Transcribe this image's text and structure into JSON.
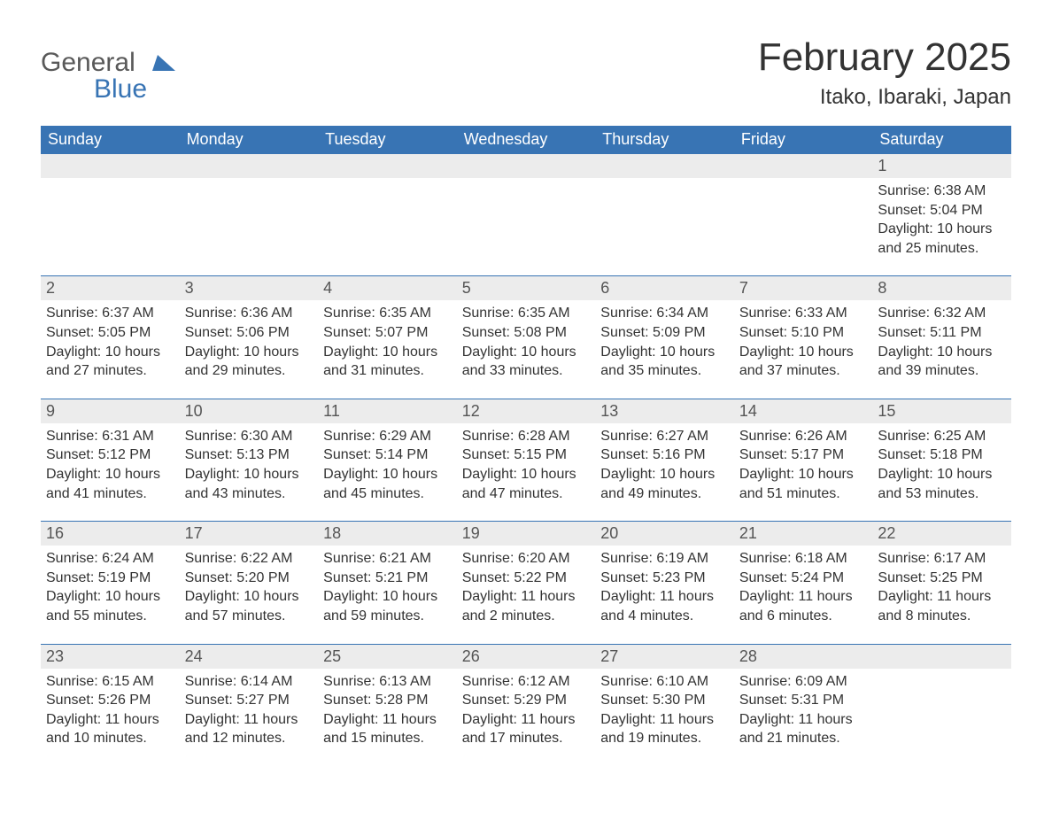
{
  "logo": {
    "word1": "General",
    "word2": "Blue",
    "word1_color": "#595959",
    "word2_color": "#3874b4",
    "flag_color": "#3874b4"
  },
  "title": "February 2025",
  "location": "Itako, Ibaraki, Japan",
  "colors": {
    "header_bg": "#3874b4",
    "header_text": "#ffffff",
    "daynum_bg": "#ececec",
    "daynum_text": "#555555",
    "body_text": "#333333",
    "separator": "#3874b4",
    "page_bg": "#ffffff"
  },
  "typography": {
    "title_fontsize": 44,
    "location_fontsize": 24,
    "weekday_fontsize": 18,
    "daynum_fontsize": 18,
    "body_fontsize": 16
  },
  "calendar": {
    "type": "table",
    "columns": [
      "Sunday",
      "Monday",
      "Tuesday",
      "Wednesday",
      "Thursday",
      "Friday",
      "Saturday"
    ],
    "weeks": [
      [
        null,
        null,
        null,
        null,
        null,
        null,
        {
          "day": "1",
          "sunrise": "Sunrise: 6:38 AM",
          "sunset": "Sunset: 5:04 PM",
          "daylight": "Daylight: 10 hours and 25 minutes."
        }
      ],
      [
        {
          "day": "2",
          "sunrise": "Sunrise: 6:37 AM",
          "sunset": "Sunset: 5:05 PM",
          "daylight": "Daylight: 10 hours and 27 minutes."
        },
        {
          "day": "3",
          "sunrise": "Sunrise: 6:36 AM",
          "sunset": "Sunset: 5:06 PM",
          "daylight": "Daylight: 10 hours and 29 minutes."
        },
        {
          "day": "4",
          "sunrise": "Sunrise: 6:35 AM",
          "sunset": "Sunset: 5:07 PM",
          "daylight": "Daylight: 10 hours and 31 minutes."
        },
        {
          "day": "5",
          "sunrise": "Sunrise: 6:35 AM",
          "sunset": "Sunset: 5:08 PM",
          "daylight": "Daylight: 10 hours and 33 minutes."
        },
        {
          "day": "6",
          "sunrise": "Sunrise: 6:34 AM",
          "sunset": "Sunset: 5:09 PM",
          "daylight": "Daylight: 10 hours and 35 minutes."
        },
        {
          "day": "7",
          "sunrise": "Sunrise: 6:33 AM",
          "sunset": "Sunset: 5:10 PM",
          "daylight": "Daylight: 10 hours and 37 minutes."
        },
        {
          "day": "8",
          "sunrise": "Sunrise: 6:32 AM",
          "sunset": "Sunset: 5:11 PM",
          "daylight": "Daylight: 10 hours and 39 minutes."
        }
      ],
      [
        {
          "day": "9",
          "sunrise": "Sunrise: 6:31 AM",
          "sunset": "Sunset: 5:12 PM",
          "daylight": "Daylight: 10 hours and 41 minutes."
        },
        {
          "day": "10",
          "sunrise": "Sunrise: 6:30 AM",
          "sunset": "Sunset: 5:13 PM",
          "daylight": "Daylight: 10 hours and 43 minutes."
        },
        {
          "day": "11",
          "sunrise": "Sunrise: 6:29 AM",
          "sunset": "Sunset: 5:14 PM",
          "daylight": "Daylight: 10 hours and 45 minutes."
        },
        {
          "day": "12",
          "sunrise": "Sunrise: 6:28 AM",
          "sunset": "Sunset: 5:15 PM",
          "daylight": "Daylight: 10 hours and 47 minutes."
        },
        {
          "day": "13",
          "sunrise": "Sunrise: 6:27 AM",
          "sunset": "Sunset: 5:16 PM",
          "daylight": "Daylight: 10 hours and 49 minutes."
        },
        {
          "day": "14",
          "sunrise": "Sunrise: 6:26 AM",
          "sunset": "Sunset: 5:17 PM",
          "daylight": "Daylight: 10 hours and 51 minutes."
        },
        {
          "day": "15",
          "sunrise": "Sunrise: 6:25 AM",
          "sunset": "Sunset: 5:18 PM",
          "daylight": "Daylight: 10 hours and 53 minutes."
        }
      ],
      [
        {
          "day": "16",
          "sunrise": "Sunrise: 6:24 AM",
          "sunset": "Sunset: 5:19 PM",
          "daylight": "Daylight: 10 hours and 55 minutes."
        },
        {
          "day": "17",
          "sunrise": "Sunrise: 6:22 AM",
          "sunset": "Sunset: 5:20 PM",
          "daylight": "Daylight: 10 hours and 57 minutes."
        },
        {
          "day": "18",
          "sunrise": "Sunrise: 6:21 AM",
          "sunset": "Sunset: 5:21 PM",
          "daylight": "Daylight: 10 hours and 59 minutes."
        },
        {
          "day": "19",
          "sunrise": "Sunrise: 6:20 AM",
          "sunset": "Sunset: 5:22 PM",
          "daylight": "Daylight: 11 hours and 2 minutes."
        },
        {
          "day": "20",
          "sunrise": "Sunrise: 6:19 AM",
          "sunset": "Sunset: 5:23 PM",
          "daylight": "Daylight: 11 hours and 4 minutes."
        },
        {
          "day": "21",
          "sunrise": "Sunrise: 6:18 AM",
          "sunset": "Sunset: 5:24 PM",
          "daylight": "Daylight: 11 hours and 6 minutes."
        },
        {
          "day": "22",
          "sunrise": "Sunrise: 6:17 AM",
          "sunset": "Sunset: 5:25 PM",
          "daylight": "Daylight: 11 hours and 8 minutes."
        }
      ],
      [
        {
          "day": "23",
          "sunrise": "Sunrise: 6:15 AM",
          "sunset": "Sunset: 5:26 PM",
          "daylight": "Daylight: 11 hours and 10 minutes."
        },
        {
          "day": "24",
          "sunrise": "Sunrise: 6:14 AM",
          "sunset": "Sunset: 5:27 PM",
          "daylight": "Daylight: 11 hours and 12 minutes."
        },
        {
          "day": "25",
          "sunrise": "Sunrise: 6:13 AM",
          "sunset": "Sunset: 5:28 PM",
          "daylight": "Daylight: 11 hours and 15 minutes."
        },
        {
          "day": "26",
          "sunrise": "Sunrise: 6:12 AM",
          "sunset": "Sunset: 5:29 PM",
          "daylight": "Daylight: 11 hours and 17 minutes."
        },
        {
          "day": "27",
          "sunrise": "Sunrise: 6:10 AM",
          "sunset": "Sunset: 5:30 PM",
          "daylight": "Daylight: 11 hours and 19 minutes."
        },
        {
          "day": "28",
          "sunrise": "Sunrise: 6:09 AM",
          "sunset": "Sunset: 5:31 PM",
          "daylight": "Daylight: 11 hours and 21 minutes."
        },
        null
      ]
    ]
  }
}
